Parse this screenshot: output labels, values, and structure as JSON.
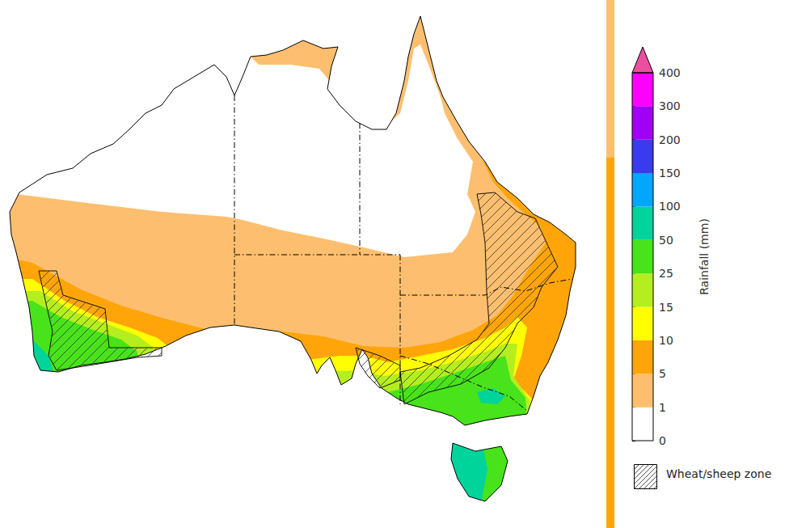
{
  "chart_data": {
    "type": "map",
    "color_bar": {
      "label": "Rainfall (mm)",
      "ticks": [
        0,
        1,
        5,
        10,
        15,
        25,
        50,
        100,
        150,
        200,
        300,
        400
      ],
      "colors": [
        "#ffffff",
        "#fdbf6f",
        "#ffa50a",
        "#ffff00",
        "#b4ee1e",
        "#48e31a",
        "#00d49a",
        "#00a6ff",
        "#3b3bee",
        "#a000f5",
        "#ff00ff",
        "#ec4f9f"
      ]
    },
    "shown_ranges": [
      [
        0,
        1
      ],
      [
        1,
        5
      ],
      [
        5,
        10
      ],
      [
        10,
        15
      ],
      [
        15,
        25
      ],
      [
        25,
        50
      ],
      [
        50,
        100
      ]
    ],
    "hatch_label": "Wheat/sheep zone"
  }
}
